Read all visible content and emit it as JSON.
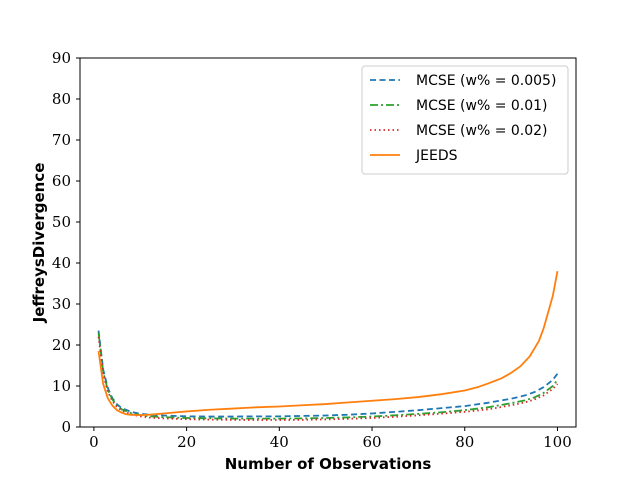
{
  "chart_data": {
    "type": "line",
    "title": "",
    "xlabel": "Number of Observations",
    "ylabel": "JeffreysDivergence",
    "xlim": [
      -3,
      104
    ],
    "ylim": [
      0,
      90
    ],
    "xticks": [
      0,
      20,
      40,
      60,
      80,
      100
    ],
    "yticks": [
      0,
      10,
      20,
      30,
      40,
      50,
      60,
      70,
      80,
      90
    ],
    "xtick_labels": [
      "0",
      "20",
      "40",
      "60",
      "80",
      "100"
    ],
    "ytick_labels": [
      "0",
      "10",
      "20",
      "30",
      "40",
      "50",
      "60",
      "70",
      "80",
      "90"
    ],
    "grid": false,
    "legend_position": "top-right",
    "series": [
      {
        "name": "MCSE (w% = 0.005)",
        "color": "#1f77b4",
        "style": "dashed",
        "x": [
          1,
          2,
          3,
          4,
          5,
          6,
          8,
          10,
          12,
          15,
          20,
          25,
          30,
          35,
          40,
          45,
          50,
          55,
          60,
          65,
          70,
          75,
          80,
          85,
          90,
          93,
          95,
          97,
          99,
          100
        ],
        "y": [
          23.5,
          14,
          9.5,
          7,
          5.5,
          4.6,
          3.7,
          3.2,
          3.0,
          2.8,
          2.6,
          2.55,
          2.55,
          2.6,
          2.6,
          2.7,
          2.8,
          3.0,
          3.3,
          3.7,
          4.1,
          4.6,
          5.1,
          5.9,
          6.9,
          7.7,
          8.5,
          9.7,
          11.5,
          13
        ]
      },
      {
        "name": "MCSE (w% = 0.01)",
        "color": "#2ca02c",
        "style": "dashdot",
        "x": [
          1,
          2,
          3,
          4,
          5,
          6,
          8,
          10,
          12,
          15,
          20,
          25,
          30,
          35,
          40,
          45,
          50,
          55,
          60,
          65,
          70,
          75,
          80,
          85,
          90,
          93,
          95,
          97,
          99,
          100
        ],
        "y": [
          23,
          13.5,
          9,
          6.7,
          5.2,
          4.3,
          3.4,
          2.9,
          2.6,
          2.4,
          2.2,
          2.1,
          2.05,
          2.05,
          2.05,
          2.1,
          2.2,
          2.35,
          2.55,
          2.85,
          3.2,
          3.6,
          4.1,
          4.8,
          5.8,
          6.5,
          7.2,
          8.3,
          10,
          11.5
        ]
      },
      {
        "name": "MCSE (w% = 0.02)",
        "color": "#d62728",
        "style": "dotted",
        "x": [
          1,
          2,
          3,
          4,
          5,
          6,
          8,
          10,
          12,
          15,
          20,
          25,
          30,
          35,
          40,
          45,
          50,
          55,
          60,
          65,
          70,
          75,
          80,
          85,
          90,
          93,
          95,
          97,
          99,
          100
        ],
        "y": [
          22,
          13,
          8.6,
          6.3,
          4.9,
          4.0,
          3.1,
          2.6,
          2.3,
          2.1,
          1.9,
          1.8,
          1.75,
          1.7,
          1.7,
          1.75,
          1.85,
          2.0,
          2.2,
          2.5,
          2.85,
          3.25,
          3.7,
          4.3,
          5.3,
          6.0,
          6.7,
          7.7,
          9.3,
          10.5
        ]
      },
      {
        "name": "JEEDS",
        "color": "#ff7f0e",
        "style": "solid",
        "x": [
          1,
          2,
          3,
          4,
          5,
          6,
          7,
          8,
          10,
          12,
          15,
          18,
          20,
          25,
          30,
          35,
          40,
          45,
          50,
          55,
          60,
          65,
          70,
          75,
          80,
          83,
          85,
          88,
          90,
          92,
          94,
          96,
          97,
          98,
          99,
          100
        ],
        "y": [
          18.5,
          10.5,
          7,
          5.2,
          4.1,
          3.5,
          3.1,
          2.95,
          2.9,
          3.0,
          3.3,
          3.6,
          3.8,
          4.2,
          4.5,
          4.8,
          5.0,
          5.3,
          5.6,
          6.0,
          6.4,
          6.8,
          7.3,
          8.0,
          8.9,
          9.8,
          10.6,
          11.9,
          13.2,
          14.8,
          17.2,
          21,
          24,
          28,
          32,
          38
        ]
      }
    ]
  }
}
